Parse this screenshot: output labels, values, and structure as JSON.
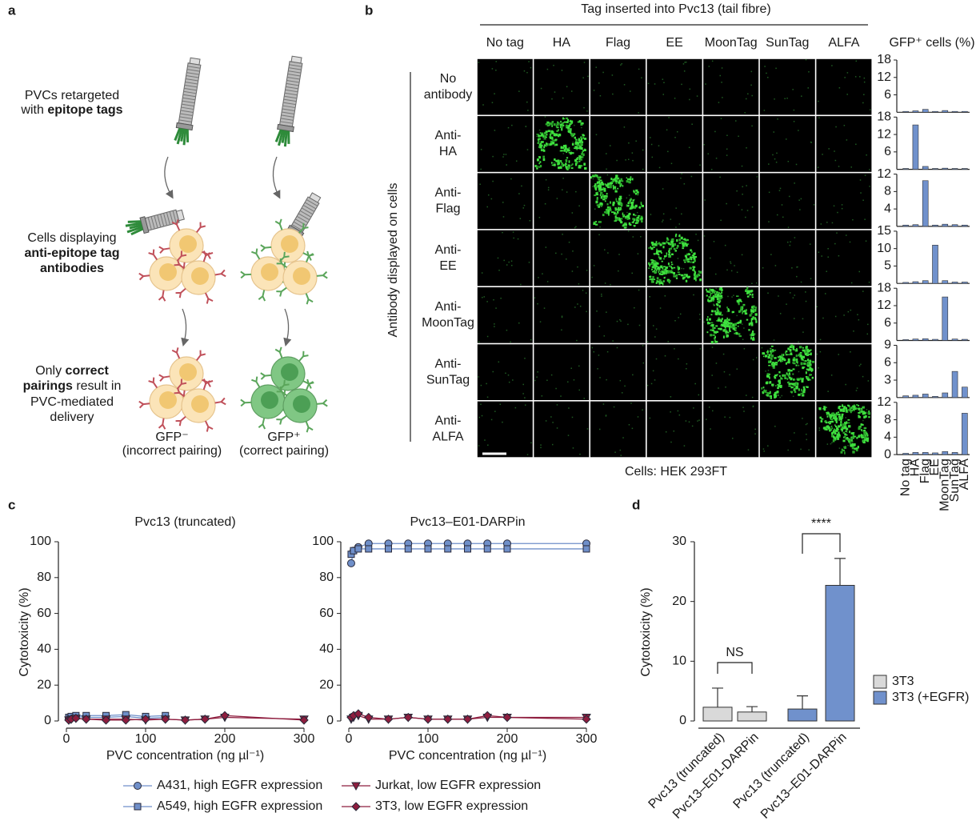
{
  "panel_labels": [
    "a",
    "b",
    "c",
    "d"
  ],
  "panel_a": {
    "steps": [
      [
        [
          {
            "text": "PVCs retargeted"
          }
        ],
        [
          {
            "text": "with "
          },
          {
            "text": "epitope tags",
            "bold": true
          }
        ]
      ],
      [
        [
          {
            "text": "Cells displaying"
          }
        ],
        [
          {
            "text": "anti-epitope tag",
            "bold": true
          }
        ],
        [
          {
            "text": "antibodies",
            "bold": true
          }
        ]
      ],
      [
        [
          {
            "text": "Only "
          },
          {
            "text": "correct",
            "bold": true
          }
        ],
        [
          {
            "text": "pairings",
            "bold": true
          },
          {
            "text": " result in"
          }
        ],
        [
          {
            "text": "PVC-mediated"
          }
        ],
        [
          {
            "text": "delivery"
          }
        ]
      ]
    ],
    "outcomes": [
      [
        "GFP⁻",
        "(incorrect pairing)"
      ],
      [
        "GFP⁺",
        "(correct pairing)"
      ]
    ]
  },
  "panel_b": {
    "header": "Tag inserted into Pvc13 (tail fibre)",
    "columns": [
      "No tag",
      "HA",
      "Flag",
      "EE",
      "MoonTag",
      "SunTag",
      "ALFA"
    ],
    "rows": [
      [
        "No",
        "antibody"
      ],
      [
        "Anti-",
        "HA"
      ],
      [
        "Anti-",
        "Flag"
      ],
      [
        "Anti-",
        "EE"
      ],
      [
        "Anti-",
        "MoonTag"
      ],
      [
        "Anti-",
        "SunTag"
      ],
      [
        "Anti-",
        "ALFA"
      ]
    ],
    "row_axis_label": "Antibody displayed on cells",
    "footer": "Cells: HEK 293FT",
    "bar_title": "GFP⁺ cells (%)"
  },
  "chart_data": [
    {
      "type": "bar",
      "color": "#7091cc",
      "ylim": [
        0,
        18
      ],
      "yticks": [
        6,
        12,
        18
      ],
      "values": [
        0.3,
        0.5,
        1.0,
        0.3,
        0.6,
        0.3,
        0.3
      ]
    },
    {
      "type": "bar",
      "color": "#7091cc",
      "ylim": [
        0,
        18
      ],
      "yticks": [
        6,
        12,
        18
      ],
      "values": [
        0.3,
        15.3,
        1.0,
        0.3,
        0.4,
        0.3,
        0.3
      ]
    },
    {
      "type": "bar",
      "color": "#7091cc",
      "ylim": [
        0,
        12
      ],
      "yticks": [
        4,
        8,
        12
      ],
      "values": [
        0.3,
        0.4,
        10.5,
        0.3,
        0.5,
        0.4,
        0.3
      ]
    },
    {
      "type": "bar",
      "color": "#7091cc",
      "ylim": [
        0,
        15
      ],
      "yticks": [
        5,
        10,
        15
      ],
      "values": [
        0.3,
        0.5,
        0.8,
        11,
        0.8,
        0.4,
        0.4
      ]
    },
    {
      "type": "bar",
      "color": "#7091cc",
      "ylim": [
        0,
        18
      ],
      "yticks": [
        6,
        12,
        18
      ],
      "values": [
        0.3,
        0.5,
        0.6,
        0.4,
        15,
        0.5,
        0.4
      ]
    },
    {
      "type": "bar",
      "color": "#7091cc",
      "ylim": [
        0,
        9
      ],
      "yticks": [
        3,
        6,
        9
      ],
      "values": [
        0.3,
        0.4,
        0.6,
        0.2,
        0.8,
        4.5,
        1.8
      ]
    },
    {
      "type": "bar",
      "color": "#7091cc",
      "ylim": [
        0,
        12
      ],
      "yticks": [
        0,
        4,
        8,
        12
      ],
      "values": [
        0.3,
        0.5,
        0.5,
        0.4,
        0.7,
        0.5,
        9.5
      ],
      "categories": [
        "No tag",
        "HA",
        "Flag",
        "EE",
        "MoonTag",
        "SunTag",
        "ALFA"
      ]
    },
    {
      "type": "line",
      "title": "Pvc13 (truncated)",
      "xlabel": "PVC concentration (ng µl⁻¹)",
      "ylabel": "Cytotoxicity (%)",
      "x": [
        3,
        6,
        12,
        25,
        50,
        75,
        100,
        125,
        150,
        175,
        200,
        300
      ],
      "xlim": [
        0,
        300
      ],
      "xticks": [
        0,
        100,
        200,
        300
      ],
      "ylim": [
        0,
        100
      ],
      "yticks": [
        0,
        20,
        40,
        60,
        80,
        100
      ],
      "series": [
        {
          "name": "A431, high EGFR expression",
          "color": "#6f8fc9",
          "marker": "circle",
          "values": [
            1.5,
            2,
            2.5,
            2,
            2,
            2.5,
            1.5,
            2,
            null,
            null,
            null,
            null
          ]
        },
        {
          "name": "A549, high EGFR expression",
          "color": "#6f8fc9",
          "marker": "square",
          "values": [
            2,
            2.5,
            3,
            3,
            3,
            3.5,
            2.5,
            3,
            null,
            null,
            null,
            null
          ]
        },
        {
          "name": "Jurkat, low EGFR expression",
          "color": "#8e1d3e",
          "marker": "triangle",
          "values": [
            0.5,
            1,
            1.5,
            1,
            1,
            1,
            0.5,
            1,
            0.5,
            1,
            2,
            1
          ]
        },
        {
          "name": "3T3, low EGFR expression",
          "color": "#8e1d3e",
          "marker": "diamond",
          "values": [
            0.5,
            1,
            1.5,
            1,
            0.5,
            0.5,
            1,
            1,
            0.5,
            1,
            3,
            0.5
          ]
        }
      ]
    },
    {
      "type": "line",
      "title": "Pvc13–E01-DARPin",
      "xlabel": "PVC concentration (ng µl⁻¹)",
      "x": [
        3,
        6,
        12,
        25,
        50,
        75,
        100,
        125,
        150,
        175,
        200,
        300
      ],
      "xlim": [
        0,
        300
      ],
      "xticks": [
        0,
        100,
        200,
        300
      ],
      "ylim": [
        0,
        100
      ],
      "yticks": [
        0,
        20,
        40,
        60,
        80,
        100
      ],
      "series": [
        {
          "color": "#6f8fc9",
          "marker": "circle",
          "values": [
            88,
            95,
            97,
            99,
            99,
            99,
            99,
            99,
            99,
            99,
            99,
            99
          ]
        },
        {
          "color": "#6f8fc9",
          "marker": "square",
          "values": [
            93,
            95,
            96,
            96,
            96,
            96,
            96,
            96,
            96,
            96,
            96,
            96
          ]
        },
        {
          "color": "#8e1d3e",
          "marker": "triangle",
          "values": [
            1,
            2,
            3,
            1,
            1,
            2,
            1,
            1,
            1,
            2,
            2,
            2
          ]
        },
        {
          "color": "#8e1d3e",
          "marker": "diamond",
          "values": [
            2,
            3,
            4,
            2,
            1,
            2,
            1,
            1,
            1,
            3,
            2,
            1
          ]
        }
      ]
    },
    {
      "type": "bar",
      "ylabel": "Cytotoxicity (%)",
      "categories": [
        "Pvc13 (truncated)",
        "Pvc13–E01-DARPin",
        "Pvc13 (truncated)",
        "Pvc13–E01-DARPin"
      ],
      "ylim": [
        0,
        30
      ],
      "yticks": [
        0,
        10,
        20,
        30
      ],
      "series": [
        {
          "name": "3T3",
          "color": "#d9d9d9",
          "values": [
            2.3,
            1.5,
            null,
            null
          ],
          "errors": [
            3.2,
            0.9,
            null,
            null
          ]
        },
        {
          "name": "3T3 (+EGFR)",
          "color": "#7091cc",
          "values": [
            null,
            null,
            2.0,
            22.7
          ],
          "errors": [
            null,
            null,
            2.2,
            4.5
          ]
        }
      ],
      "annotations": [
        "NS",
        "****"
      ]
    }
  ]
}
